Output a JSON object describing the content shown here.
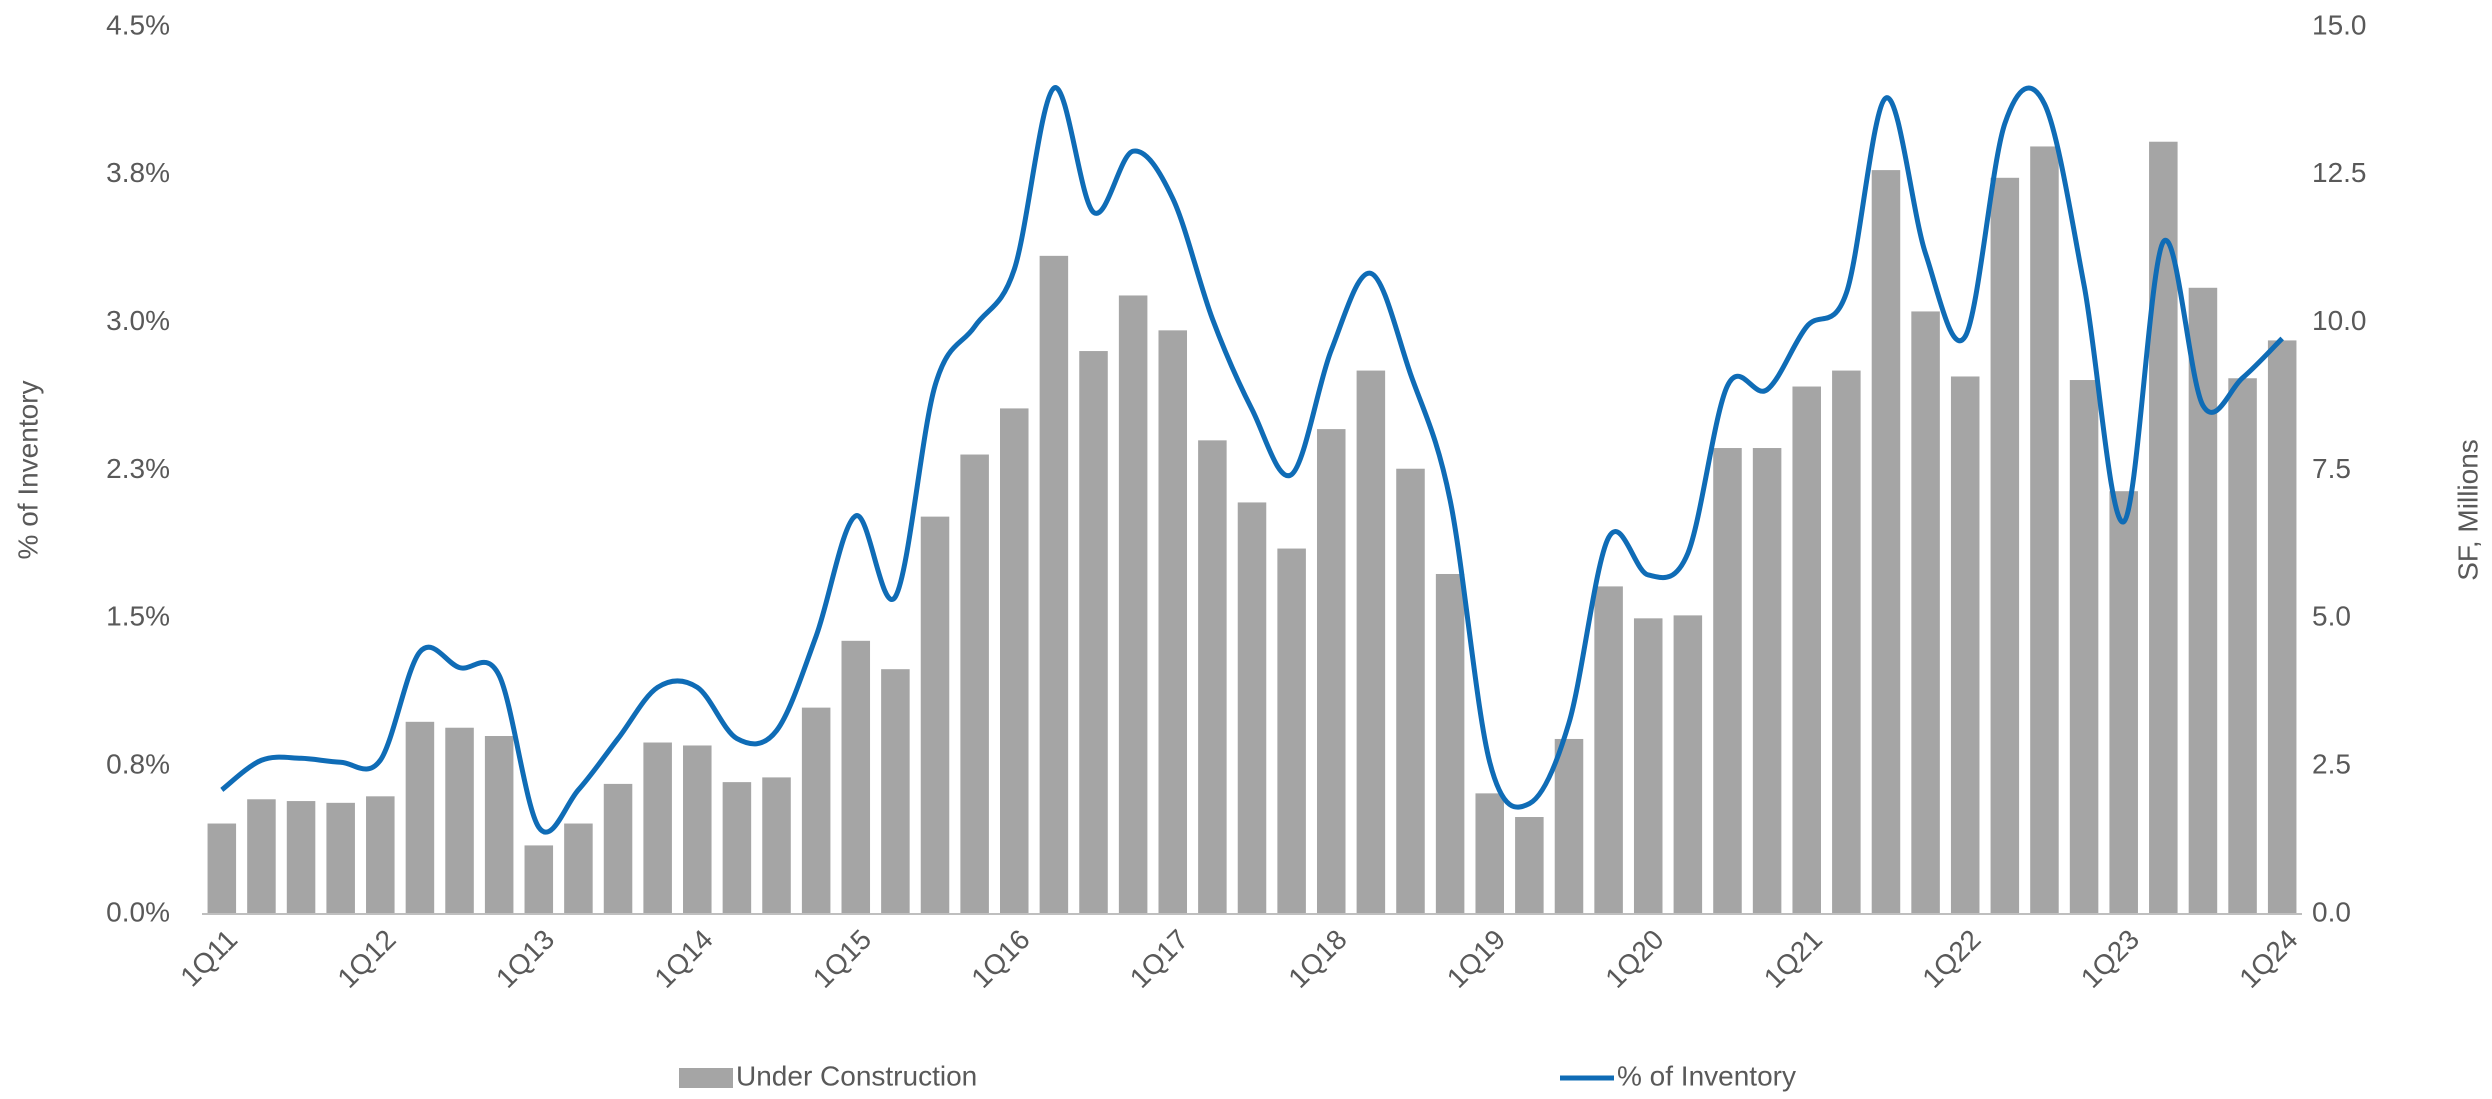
{
  "chart_data": {
    "type": "bar-line",
    "categories": [
      "1Q11",
      null,
      null,
      null,
      "1Q12",
      null,
      null,
      null,
      "1Q13",
      null,
      null,
      null,
      "1Q14",
      null,
      null,
      null,
      "1Q15",
      null,
      null,
      null,
      "1Q16",
      null,
      null,
      null,
      "1Q17",
      null,
      null,
      null,
      "1Q18",
      null,
      null,
      null,
      "1Q19",
      null,
      null,
      null,
      "1Q20",
      null,
      null,
      null,
      "1Q21",
      null,
      null,
      null,
      "1Q22",
      null,
      null,
      null,
      "1Q23",
      null,
      null,
      null,
      "1Q24"
    ],
    "ylabel": "% of Inventory",
    "y2label": "SF, Millions",
    "ylim": [
      0,
      4.5
    ],
    "yticks": [
      {
        "value": 0,
        "label": "0.0%"
      },
      {
        "value": 0.75,
        "label": "0.8%"
      },
      {
        "value": 1.5,
        "label": "1.5%"
      },
      {
        "value": 2.25,
        "label": "2.3%"
      },
      {
        "value": 3,
        "label": "3.0%"
      },
      {
        "value": 3.75,
        "label": "3.8%"
      },
      {
        "value": 4.5,
        "label": "4.5%"
      }
    ],
    "y2lim": [
      0,
      15
    ],
    "y2ticks": [
      {
        "value": 0,
        "label": "0.0"
      },
      {
        "value": 2.5,
        "label": "2.5"
      },
      {
        "value": 5,
        "label": "5.0"
      },
      {
        "value": 7.5,
        "label": "7.5"
      },
      {
        "value": 10,
        "label": "10.0"
      },
      {
        "value": 12.5,
        "label": "12.5"
      },
      {
        "value": 15,
        "label": "15.0"
      }
    ],
    "series": [
      {
        "name": "Under Construction",
        "type": "bar",
        "axis": "y2",
        "color": "#a5a5a5",
        "values": [
          1.53,
          1.94,
          1.91,
          1.88,
          1.99,
          3.25,
          3.15,
          3.01,
          1.16,
          1.53,
          2.2,
          2.9,
          2.85,
          2.23,
          2.31,
          3.49,
          4.62,
          4.14,
          6.72,
          7.77,
          8.55,
          11.13,
          9.52,
          10.46,
          9.87,
          8.01,
          6.96,
          6.18,
          8.2,
          9.19,
          7.53,
          5.75,
          2.04,
          1.64,
          2.96,
          5.54,
          5.0,
          5.05,
          7.88,
          7.88,
          8.92,
          9.19,
          12.58,
          10.19,
          9.09,
          12.45,
          12.98,
          9.03,
          7.15,
          13.06,
          10.59,
          9.06,
          9.7
        ]
      },
      {
        "name": "% of Inventory",
        "type": "line",
        "color": "#0f6cb6",
        "values": [
          0.63,
          0.78,
          0.79,
          0.77,
          0.78,
          1.33,
          1.25,
          1.21,
          0.44,
          0.63,
          0.89,
          1.15,
          1.15,
          0.89,
          0.93,
          1.41,
          2.02,
          1.61,
          2.68,
          2.98,
          3.27,
          4.19,
          3.56,
          3.87,
          3.63,
          3.02,
          2.56,
          2.23,
          2.86,
          3.25,
          2.74,
          2.1,
          0.77,
          0.56,
          0.97,
          1.91,
          1.72,
          1.83,
          2.68,
          2.66,
          2.98,
          3.15,
          4.14,
          3.35,
          2.93,
          4.01,
          4.11,
          3.19,
          1.99,
          3.41,
          2.58,
          2.72,
          2.92
        ]
      }
    ]
  }
}
